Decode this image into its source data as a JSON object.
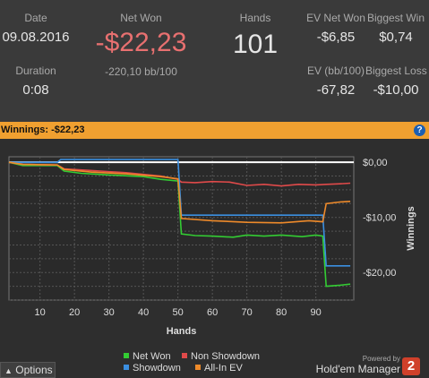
{
  "summary": {
    "date_label": "Date",
    "date_value": "09.08.2016",
    "duration_label": "Duration",
    "duration_value": "0:08",
    "netwon_label": "Net Won",
    "netwon_value": "-$22,23",
    "netwon_sub": "-220,10 bb/100",
    "hands_label": "Hands",
    "hands_value": "101",
    "evnet_label": "EV Net Won",
    "evnet_value": "-$6,85",
    "evbb_label": "EV (bb/100)",
    "evbb_value": "-67,82",
    "bigwin_label": "Biggest Win",
    "bigwin_value": "$0,74",
    "bigloss_label": "Biggest Loss",
    "bigloss_value": "-$10,00"
  },
  "winnings_bar": {
    "label": "Winnings:",
    "value": "-$22,23"
  },
  "footer": {
    "options_label": "Options",
    "powered": "Powered by",
    "brand": "Hold'em Manager",
    "brand_badge": "2"
  },
  "colors": {
    "net_won": "#33cc33",
    "non_showdown": "#e04a4a",
    "showdown": "#3b8fe0",
    "allin_ev": "#ee8a2a",
    "zero": "#ffffff"
  },
  "chart_data": {
    "type": "line",
    "xlabel": "Hands",
    "ylabel": "Winnings",
    "xlim": [
      1,
      101
    ],
    "ylim": [
      -25,
      1
    ],
    "x_ticks": [
      10,
      20,
      30,
      40,
      50,
      60,
      70,
      80,
      90
    ],
    "y_ticks": [
      {
        "v": 0,
        "label": "$0,00"
      },
      {
        "v": -10,
        "label": "-$10,00"
      },
      {
        "v": -20,
        "label": "-$20,00"
      }
    ],
    "legend": [
      "Net Won",
      "Non Showdown",
      "Showdown",
      "All-In EV"
    ],
    "series": [
      {
        "name": "Net Won",
        "key": "net_won",
        "points": [
          [
            1,
            0
          ],
          [
            5,
            -0.6
          ],
          [
            15,
            -0.6
          ],
          [
            17,
            -1.6
          ],
          [
            22,
            -2.0
          ],
          [
            30,
            -2.3
          ],
          [
            40,
            -2.6
          ],
          [
            45,
            -3.1
          ],
          [
            50,
            -3.4
          ],
          [
            51,
            -13.0
          ],
          [
            55,
            -13.3
          ],
          [
            60,
            -13.4
          ],
          [
            66,
            -13.6
          ],
          [
            70,
            -13.2
          ],
          [
            75,
            -13.4
          ],
          [
            80,
            -13.2
          ],
          [
            86,
            -13.5
          ],
          [
            90,
            -13.2
          ],
          [
            92,
            -13.4
          ],
          [
            93,
            -22.5
          ],
          [
            97,
            -22.3
          ],
          [
            100,
            -22.1
          ]
        ]
      },
      {
        "name": "Non Showdown",
        "key": "non_showdown",
        "points": [
          [
            1,
            0
          ],
          [
            5,
            -0.4
          ],
          [
            15,
            -0.5
          ],
          [
            17,
            -1.2
          ],
          [
            25,
            -1.5
          ],
          [
            35,
            -1.9
          ],
          [
            45,
            -2.5
          ],
          [
            50,
            -3.1
          ],
          [
            51,
            -3.6
          ],
          [
            55,
            -3.7
          ],
          [
            60,
            -3.5
          ],
          [
            65,
            -3.6
          ],
          [
            70,
            -4.2
          ],
          [
            75,
            -4.0
          ],
          [
            80,
            -4.3
          ],
          [
            85,
            -4.0
          ],
          [
            90,
            -4.1
          ],
          [
            93,
            -4.0
          ],
          [
            97,
            -3.9
          ],
          [
            100,
            -3.8
          ]
        ]
      },
      {
        "name": "Showdown",
        "key": "showdown",
        "points": [
          [
            1,
            0
          ],
          [
            15,
            0
          ],
          [
            16,
            0.5
          ],
          [
            50,
            0.5
          ],
          [
            51,
            -9.6
          ],
          [
            92,
            -9.6
          ],
          [
            93,
            -18.8
          ],
          [
            100,
            -18.8
          ]
        ]
      },
      {
        "name": "All-In EV",
        "key": "allin_ev",
        "points": [
          [
            1,
            0
          ],
          [
            5,
            -0.4
          ],
          [
            15,
            -0.5
          ],
          [
            17,
            -1.3
          ],
          [
            25,
            -1.8
          ],
          [
            35,
            -2.1
          ],
          [
            45,
            -2.6
          ],
          [
            50,
            -3.0
          ],
          [
            51,
            -10.2
          ],
          [
            60,
            -10.6
          ],
          [
            70,
            -10.9
          ],
          [
            80,
            -11.0
          ],
          [
            88,
            -10.6
          ],
          [
            92,
            -10.8
          ],
          [
            93,
            -7.5
          ],
          [
            97,
            -7.2
          ],
          [
            100,
            -7.1
          ]
        ]
      }
    ]
  }
}
